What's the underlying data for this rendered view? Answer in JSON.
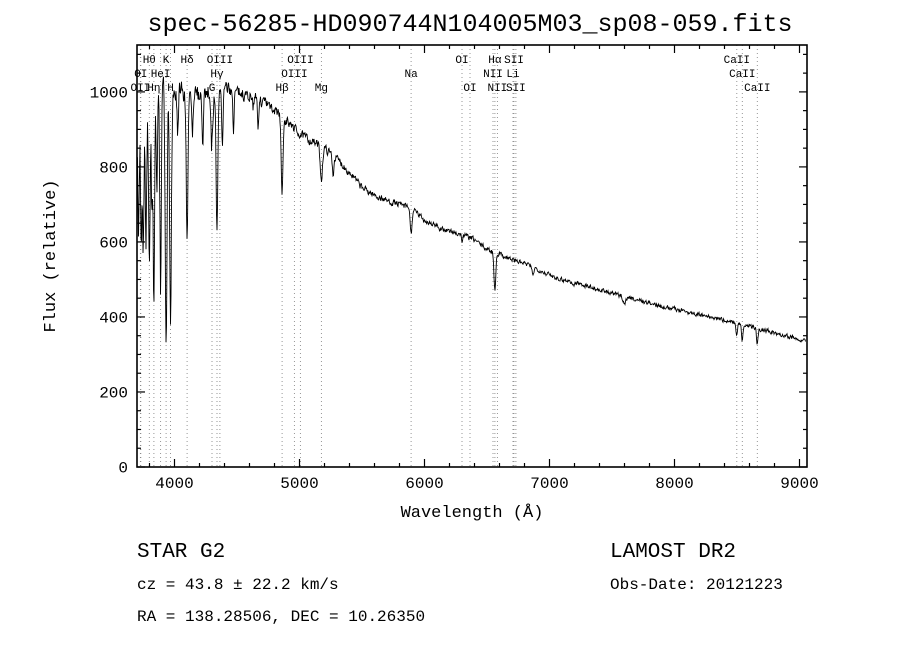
{
  "chart_data": {
    "type": "line",
    "title": "spec-56285-HD090744N104005M03_sp08-059.fits",
    "xlabel": "Wavelength (Å)",
    "ylabel": "Flux (relative)",
    "xlim": [
      3700,
      9060
    ],
    "ylim": [
      0,
      1125
    ],
    "xticks": [
      4000,
      5000,
      6000,
      7000,
      8000,
      9000
    ],
    "yticks": [
      0,
      200,
      400,
      600,
      800,
      1000
    ],
    "x_minor_step": 200,
    "y_minor_step": 50,
    "line_color": "#000000",
    "marker_color": "#8a8a8a",
    "noise_seed": 7,
    "spectral_lines": [
      {
        "wavelength": 3727,
        "label": "OII",
        "row": 3
      },
      {
        "wavelength": 3730,
        "label": "OI",
        "row": 2
      },
      {
        "wavelength": 3798,
        "label": "Hθ",
        "row": 1
      },
      {
        "wavelength": 3835,
        "label": "Hη",
        "row": 3
      },
      {
        "wavelength": 3889,
        "label": "HeI",
        "row": 2
      },
      {
        "wavelength": 3933,
        "label": "K",
        "row": 1
      },
      {
        "wavelength": 3968,
        "label": "H",
        "row": 3
      },
      {
        "wavelength": 4101,
        "label": "Hδ",
        "row": 1
      },
      {
        "wavelength": 4300,
        "label": "G",
        "row": 3
      },
      {
        "wavelength": 4340,
        "label": "Hγ",
        "row": 2
      },
      {
        "wavelength": 4363,
        "label": "OIII",
        "row": 1
      },
      {
        "wavelength": 4861,
        "label": "Hβ",
        "row": 3
      },
      {
        "wavelength": 4959,
        "label": "OIII",
        "row": 2
      },
      {
        "wavelength": 5007,
        "label": "OIII",
        "row": 1
      },
      {
        "wavelength": 5175,
        "label": "Mg",
        "row": 3
      },
      {
        "wavelength": 5893,
        "label": "Na",
        "row": 2
      },
      {
        "wavelength": 6300,
        "label": "OI",
        "row": 1
      },
      {
        "wavelength": 6364,
        "label": "OI",
        "row": 3
      },
      {
        "wavelength": 6548,
        "label": "NII",
        "row": 2
      },
      {
        "wavelength": 6563,
        "label": "Hα",
        "row": 1
      },
      {
        "wavelength": 6583,
        "label": "NII",
        "row": 3
      },
      {
        "wavelength": 6708,
        "label": "Li",
        "row": 2
      },
      {
        "wavelength": 6716,
        "label": "SII",
        "row": 1
      },
      {
        "wavelength": 6731,
        "label": "SII",
        "row": 3
      },
      {
        "wavelength": 8498,
        "label": "CaII",
        "row": 1
      },
      {
        "wavelength": 8542,
        "label": "CaII",
        "row": 2
      },
      {
        "wavelength": 8662,
        "label": "CaII",
        "row": 3
      }
    ],
    "flux_points": [
      [
        3700,
        860
      ],
      [
        3760,
        940
      ],
      [
        3830,
        975
      ],
      [
        3900,
        995
      ],
      [
        4000,
        992
      ],
      [
        4100,
        990
      ],
      [
        4200,
        995
      ],
      [
        4300,
        1002
      ],
      [
        4400,
        1010
      ],
      [
        4500,
        1000
      ],
      [
        4600,
        990
      ],
      [
        4700,
        975
      ],
      [
        4800,
        950
      ],
      [
        4900,
        922
      ],
      [
        5000,
        888
      ],
      [
        5100,
        868
      ],
      [
        5200,
        850
      ],
      [
        5300,
        822
      ],
      [
        5400,
        785
      ],
      [
        5500,
        745
      ],
      [
        5600,
        724
      ],
      [
        5700,
        710
      ],
      [
        5800,
        700
      ],
      [
        5900,
        688
      ],
      [
        6000,
        658
      ],
      [
        6100,
        642
      ],
      [
        6200,
        628
      ],
      [
        6300,
        620
      ],
      [
        6400,
        606
      ],
      [
        6500,
        580
      ],
      [
        6600,
        568
      ],
      [
        6700,
        553
      ],
      [
        6800,
        542
      ],
      [
        6900,
        528
      ],
      [
        7000,
        512
      ],
      [
        7100,
        500
      ],
      [
        7250,
        488
      ],
      [
        7400,
        472
      ],
      [
        7550,
        458
      ],
      [
        7700,
        446
      ],
      [
        7850,
        432
      ],
      [
        8000,
        422
      ],
      [
        8150,
        410
      ],
      [
        8300,
        398
      ],
      [
        8450,
        388
      ],
      [
        8600,
        375
      ],
      [
        8750,
        362
      ],
      [
        8900,
        350
      ],
      [
        9060,
        336
      ]
    ],
    "absorption_features": [
      [
        3712,
        5,
        0.3
      ],
      [
        3734,
        5,
        0.32
      ],
      [
        3750,
        5,
        0.35
      ],
      [
        3771,
        5,
        0.38
      ],
      [
        3798,
        6,
        0.45
      ],
      [
        3820,
        5,
        0.3
      ],
      [
        3835,
        6,
        0.6
      ],
      [
        3860,
        5,
        0.25
      ],
      [
        3889,
        6,
        0.5
      ],
      [
        3933,
        7,
        0.72
      ],
      [
        3968,
        7,
        0.58
      ],
      [
        4026,
        5,
        0.12
      ],
      [
        4101,
        7,
        0.4
      ],
      [
        4144,
        5,
        0.12
      ],
      [
        4226,
        5,
        0.15
      ],
      [
        4300,
        8,
        0.12
      ],
      [
        4340,
        7,
        0.38
      ],
      [
        4383,
        5,
        0.15
      ],
      [
        4472,
        5,
        0.1
      ],
      [
        4668,
        5,
        0.08
      ],
      [
        4861,
        7,
        0.22
      ],
      [
        5175,
        9,
        0.1
      ],
      [
        5269,
        6,
        0.06
      ],
      [
        5893,
        7,
        0.1
      ],
      [
        6122,
        5,
        0.03
      ],
      [
        6300,
        5,
        0.03
      ],
      [
        6563,
        7,
        0.18
      ],
      [
        6867,
        8,
        0.03
      ],
      [
        7190,
        8,
        0.02
      ],
      [
        7600,
        10,
        0.04
      ],
      [
        8498,
        6,
        0.08
      ],
      [
        8542,
        6,
        0.13
      ],
      [
        8662,
        6,
        0.11
      ]
    ],
    "noise_profile": [
      [
        3700,
        60
      ],
      [
        3850,
        50
      ],
      [
        3980,
        38
      ],
      [
        4150,
        24
      ],
      [
        4400,
        17
      ],
      [
        4700,
        15
      ],
      [
        5000,
        12
      ],
      [
        5400,
        10
      ],
      [
        5900,
        8
      ],
      [
        6500,
        7
      ],
      [
        7200,
        6
      ],
      [
        8000,
        6
      ],
      [
        9060,
        6
      ]
    ]
  },
  "annotations": {
    "class_label": "STAR   G2",
    "survey": "LAMOST DR2",
    "cz": "cz = 43.8 ± 22.2 km/s",
    "obs_date": "Obs-Date: 20121223",
    "radec": "RA = 138.28506, DEC =  10.26350"
  }
}
